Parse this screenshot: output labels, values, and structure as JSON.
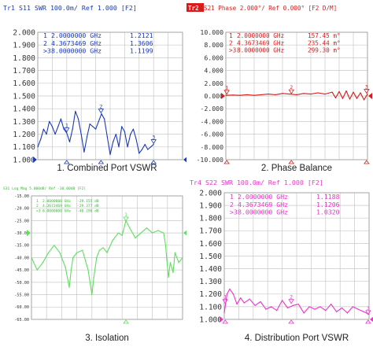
{
  "chart_data": [
    {
      "type": "line",
      "header": "Tr1  S11  SWR 100.0m/ Ref 1.000  [F2]",
      "caption": "1. Combined Port VSWR",
      "ytick_labels": [
        "2.000",
        "1.900",
        "1.800",
        "1.700",
        "1.600",
        "1.500",
        "1.400",
        "1.300",
        "1.200",
        "1.100",
        "1.000"
      ],
      "ylim": [
        1.0,
        2.0
      ],
      "xlim": [
        0,
        10
      ],
      "grid": true,
      "markers": [
        {
          "label": "1",
          "freq": "2.0000000 GHz",
          "value": "1.2121",
          "active": false
        },
        {
          "label": "2",
          "freq": "4.3673469 GHz",
          "value": "1.3606",
          "active": false
        },
        {
          "label": "3",
          "freq": "8.0000000 GHz",
          "value": "1.1199",
          "active": true
        }
      ],
      "marker_points": [
        {
          "label": "1",
          "x": 2.0,
          "y": 1.212
        },
        {
          "label": "2",
          "x": 4.367,
          "y": 1.361
        },
        {
          "label": "3",
          "x": 8.0,
          "y": 1.12
        }
      ],
      "colors": {
        "trace": "#1a3ab8",
        "header": "#1a3ab8",
        "text": "#1a3ab8"
      },
      "x": [
        0.0,
        0.2,
        0.4,
        0.6,
        0.8,
        1.0,
        1.2,
        1.4,
        1.6,
        1.8,
        2.0,
        2.2,
        2.4,
        2.6,
        2.8,
        3.0,
        3.2,
        3.4,
        3.6,
        3.8,
        4.0,
        4.2,
        4.4,
        4.6,
        4.8,
        5.0,
        5.2,
        5.4,
        5.6,
        5.8,
        6.0,
        6.2,
        6.4,
        6.6,
        6.8,
        7.0,
        7.2,
        7.4,
        7.6,
        7.8,
        8.0
      ],
      "y": [
        1.1,
        1.16,
        1.24,
        1.2,
        1.3,
        1.26,
        1.2,
        1.26,
        1.32,
        1.24,
        1.21,
        1.14,
        1.24,
        1.38,
        1.32,
        1.2,
        1.06,
        1.18,
        1.28,
        1.26,
        1.24,
        1.3,
        1.36,
        1.32,
        1.18,
        1.04,
        1.14,
        1.2,
        1.1,
        1.26,
        1.22,
        1.1,
        1.2,
        1.24,
        1.16,
        1.05,
        1.08,
        1.12,
        1.08,
        1.1,
        1.12
      ]
    },
    {
      "type": "line",
      "header_tag": "Tr2",
      "header": " S21  Phase 2.000°/ Ref 0.000° [F2 D/M]",
      "caption": "2. Phase Balance",
      "ytick_labels": [
        "10.000",
        "8.000",
        "6.000",
        "4.000",
        "2.000",
        "0.000",
        "-2.000",
        "-4.000",
        "-6.000",
        "-8.000",
        "-10.000"
      ],
      "ylim": [
        -10,
        10
      ],
      "xlim": [
        0,
        8
      ],
      "grid": true,
      "markers": [
        {
          "label": "1",
          "freq": "2.0000000 GHz",
          "value": "157.45 m°",
          "active": false
        },
        {
          "label": "2",
          "freq": "4.3673469 GHz",
          "value": "235.44 m°",
          "active": false
        },
        {
          "label": "3",
          "freq": "8.0000000 GHz",
          "value": "299.30 m°",
          "active": true
        }
      ],
      "marker_points": [
        {
          "label": "1",
          "x": 0.05,
          "y": 0.157
        },
        {
          "label": "2",
          "x": 3.7,
          "y": 0.235
        },
        {
          "label": "3",
          "x": 7.95,
          "y": 0.299
        }
      ],
      "colors": {
        "trace": "#d81c1c",
        "header": "#d81c1c",
        "text": "#d81c1c",
        "tag_bg": "#d81c1c"
      },
      "x": [
        0.0,
        0.4,
        0.8,
        1.2,
        1.6,
        2.0,
        2.4,
        2.8,
        3.2,
        3.6,
        4.0,
        4.4,
        4.8,
        5.2,
        5.6,
        6.0,
        6.2,
        6.4,
        6.6,
        6.8,
        7.0,
        7.2,
        7.4,
        7.6,
        7.8,
        8.0
      ],
      "y": [
        0.1,
        0.15,
        0.1,
        0.2,
        0.1,
        0.2,
        0.3,
        0.2,
        0.4,
        0.3,
        0.2,
        0.4,
        0.3,
        0.5,
        0.3,
        0.6,
        -0.3,
        0.7,
        -0.4,
        0.8,
        -0.5,
        0.6,
        -0.4,
        0.5,
        -0.6,
        0.3
      ]
    },
    {
      "type": "line",
      "header": "S31 Log Mag 5.000dB/ Ref -30.00dB [F2]",
      "caption": "3. Isolation",
      "ytick_labels": [
        "-15.00",
        "-20.00",
        "-25.00",
        "-30.00",
        "-35.00",
        "-40.00",
        "-45.00",
        "-50.00",
        "-55.00",
        "-60.00",
        "-65.00"
      ],
      "ylim": [
        -65,
        -15
      ],
      "xlim": [
        0,
        8
      ],
      "grid": true,
      "markers": [
        {
          "label": "1",
          "freq": "2.0000000 GHz",
          "value": "-29.155 dB",
          "active": false
        },
        {
          "label": "2",
          "freq": "4.3673469 GHz",
          "value": "-29.377 dB",
          "active": false
        },
        {
          "label": "3",
          "freq": "8.0000000 GHz",
          "value": "-40.296 dB",
          "active": true
        }
      ],
      "marker_points": [
        {
          "label": "1",
          "x": 5.0,
          "y": -25.5
        }
      ],
      "colors": {
        "trace": "#5ce05c",
        "header": "#3cb43c",
        "text": "#3cb43c"
      },
      "x": [
        0.0,
        0.3,
        0.6,
        0.9,
        1.2,
        1.5,
        1.8,
        2.0,
        2.1,
        2.2,
        2.4,
        2.7,
        3.0,
        3.2,
        3.3,
        3.45,
        3.6,
        3.8,
        4.0,
        4.3,
        4.6,
        4.8,
        5.0,
        5.2,
        5.5,
        5.8,
        6.1,
        6.4,
        6.7,
        7.0,
        7.1,
        7.25,
        7.35,
        7.5,
        7.6,
        7.8,
        8.0
      ],
      "y": [
        -40,
        -45,
        -42,
        -38,
        -35,
        -38,
        -44,
        -52,
        -45,
        -40,
        -38,
        -37,
        -45,
        -55,
        -48,
        -40,
        -37,
        -36,
        -38,
        -33,
        -30,
        -31,
        -25,
        -28,
        -32,
        -30,
        -28,
        -30,
        -29,
        -30,
        -35,
        -48,
        -42,
        -46,
        -38,
        -42,
        -40
      ]
    },
    {
      "type": "line",
      "header": "Tr4  S22  SWR 100.0m/ Ref 1.000  [F2]",
      "caption": "4. Distribution  Port VSWR",
      "ytick_labels": [
        "2.000",
        "1.900",
        "1.800",
        "1.700",
        "1.600",
        "1.500",
        "1.400",
        "1.300",
        "1.200",
        "1.100",
        "1.000"
      ],
      "ylim": [
        1.0,
        2.0
      ],
      "xlim": [
        0,
        8
      ],
      "grid": true,
      "markers": [
        {
          "label": "1",
          "freq": "2.0000000 GHz",
          "value": "1.1188",
          "active": false
        },
        {
          "label": "2",
          "freq": "4.3673469 GHz",
          "value": "1.1206",
          "active": false
        },
        {
          "label": "3",
          "freq": "8.0000000 GHz",
          "value": "1.0320",
          "active": true
        }
      ],
      "marker_points": [
        {
          "label": "1",
          "x": 0.05,
          "y": 1.12
        },
        {
          "label": "2",
          "x": 3.7,
          "y": 1.12
        },
        {
          "label": "3",
          "x": 7.95,
          "y": 1.032
        }
      ],
      "colors": {
        "trace": "#ee33cc",
        "header": "#ee33cc",
        "text": "#ee33cc"
      },
      "x": [
        0.0,
        0.15,
        0.3,
        0.5,
        0.7,
        0.9,
        1.1,
        1.4,
        1.7,
        2.0,
        2.3,
        2.6,
        2.9,
        3.2,
        3.5,
        3.8,
        4.1,
        4.4,
        4.7,
        5.0,
        5.3,
        5.6,
        5.9,
        6.2,
        6.5,
        6.8,
        7.1,
        7.4,
        7.7,
        8.0
      ],
      "y": [
        1.05,
        1.2,
        1.24,
        1.2,
        1.12,
        1.17,
        1.13,
        1.16,
        1.11,
        1.14,
        1.08,
        1.1,
        1.07,
        1.15,
        1.09,
        1.11,
        1.12,
        1.05,
        1.1,
        1.08,
        1.1,
        1.07,
        1.12,
        1.06,
        1.09,
        1.05,
        1.1,
        1.08,
        1.06,
        1.04
      ]
    }
  ]
}
